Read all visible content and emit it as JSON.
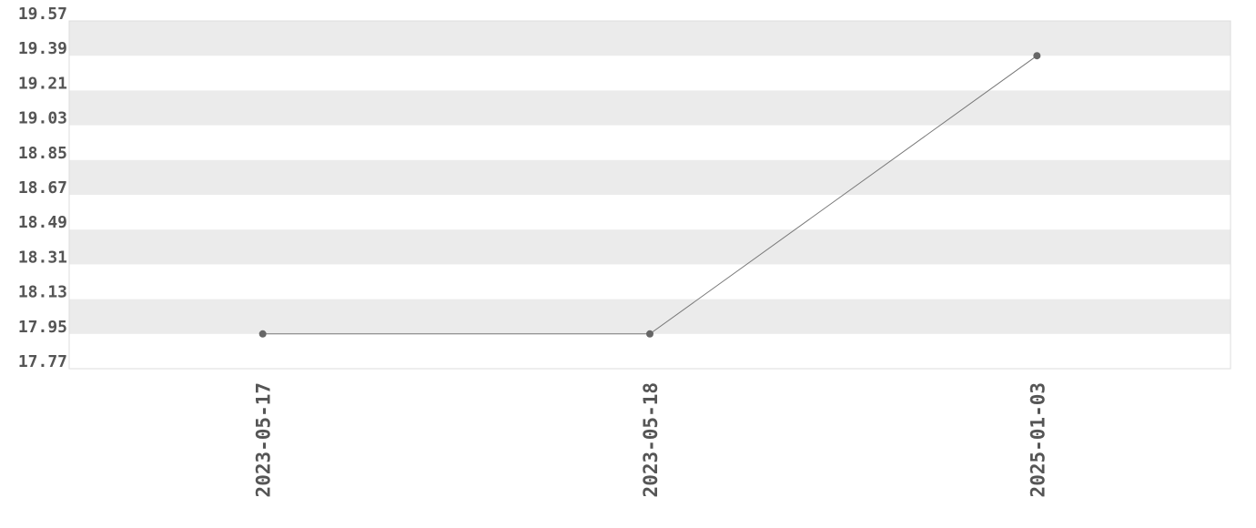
{
  "chart_data": {
    "type": "line",
    "title": "",
    "xlabel": "",
    "ylabel": "",
    "categories": [
      "2023-05-17",
      "2023-05-18",
      "2025-01-03"
    ],
    "values": [
      17.95,
      17.95,
      19.39
    ],
    "ylim": [
      17.77,
      19.57
    ],
    "yticks": [
      "17.77",
      "17.95",
      "18.13",
      "18.31",
      "18.49",
      "18.67",
      "18.85",
      "19.03",
      "19.21",
      "19.39",
      "19.57"
    ],
    "grid": "alternating horizontal bands",
    "legend": "none",
    "colors": {
      "band": "#ebebeb",
      "line": "#777777",
      "point": "#666666",
      "text": "#555555",
      "border": "#dddddd"
    }
  }
}
